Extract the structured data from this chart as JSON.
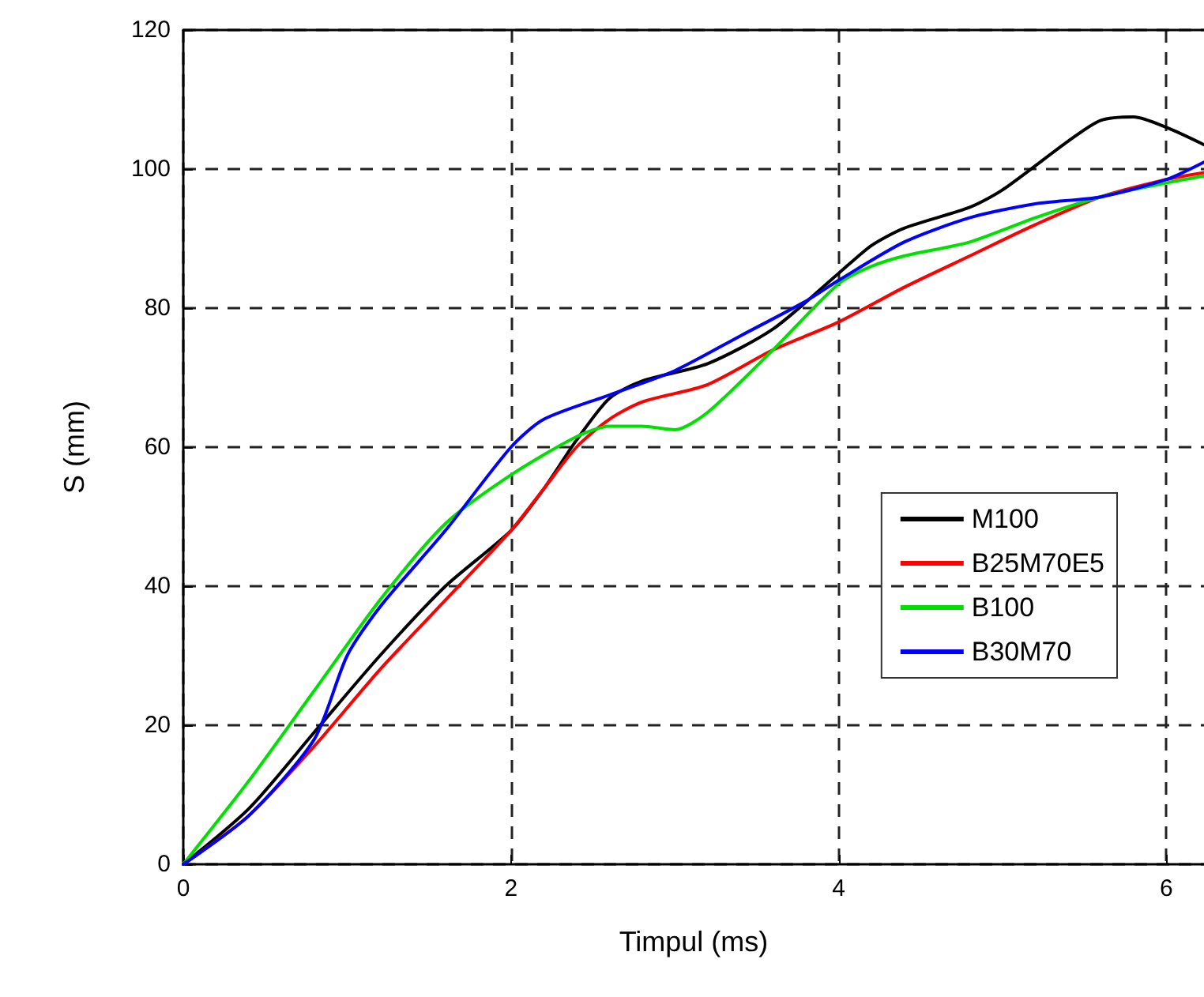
{
  "chart_data": {
    "type": "line",
    "xlabel": "Timpul (ms)",
    "ylabel": "S (mm)",
    "xlim": [
      0,
      6.23
    ],
    "xticks": [
      0,
      2,
      4,
      6
    ],
    "ylim": [
      0,
      120
    ],
    "yticks": [
      0,
      20,
      40,
      60,
      80,
      100,
      120
    ],
    "grid": true,
    "legend": "right",
    "marker": "none",
    "line_style": "solid",
    "series": [
      {
        "name": "M100",
        "color": "#000000",
        "x": [
          0,
          0.4,
          0.8,
          1.2,
          1.6,
          2.0,
          2.2,
          2.4,
          2.6,
          2.8,
          3.2,
          3.6,
          4.0,
          4.2,
          4.4,
          4.8,
          5.0,
          5.4,
          5.6,
          5.8,
          6.0,
          6.23
        ],
        "values": [
          0,
          8,
          19,
          30,
          40,
          48,
          54,
          61,
          67,
          69.5,
          72,
          77,
          85,
          89,
          91.5,
          94.5,
          97,
          104,
          107,
          107.5,
          106,
          103.5
        ]
      },
      {
        "name": "B25M70E5",
        "color": "#ff0000",
        "x": [
          0,
          0.4,
          0.8,
          1.2,
          1.6,
          2.0,
          2.2,
          2.4,
          2.6,
          2.8,
          3.2,
          3.6,
          4.0,
          4.4,
          4.8,
          5.2,
          5.6,
          6.0,
          6.23
        ],
        "values": [
          0,
          7,
          17,
          28,
          38,
          48,
          54,
          60,
          64,
          66.5,
          69,
          74,
          78,
          83,
          87.5,
          92,
          96,
          98.5,
          99.5
        ]
      },
      {
        "name": "B100",
        "color": "#00e000",
        "x": [
          0,
          0.4,
          0.8,
          1.2,
          1.6,
          2.0,
          2.4,
          2.6,
          2.8,
          3.0,
          3.2,
          3.6,
          4.0,
          4.2,
          4.4,
          4.8,
          5.2,
          5.6,
          6.0,
          6.23
        ],
        "values": [
          0,
          12,
          25,
          38,
          49,
          56,
          61.5,
          63,
          63,
          62.5,
          65,
          74,
          83.5,
          86,
          87.5,
          89.5,
          93,
          96,
          98,
          99
        ]
      },
      {
        "name": "B30M70",
        "color": "#0000ff",
        "x": [
          0,
          0.4,
          0.8,
          1.0,
          1.2,
          1.6,
          2.0,
          2.2,
          2.6,
          3.0,
          3.4,
          3.8,
          4.0,
          4.4,
          4.8,
          5.2,
          5.6,
          6.0,
          6.23
        ],
        "values": [
          0,
          7,
          18,
          30,
          37,
          48,
          60,
          64,
          67.5,
          71,
          76,
          81,
          84,
          89.5,
          93,
          95,
          96,
          98.5,
          101
        ]
      }
    ]
  }
}
